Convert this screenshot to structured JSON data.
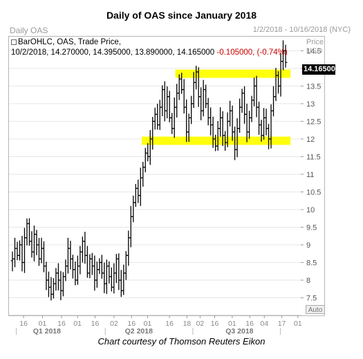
{
  "header": {
    "title": "Daily of OAS since January 2018",
    "panel_name": "Daily OAS",
    "date_range": "1/2/2018 - 10/16/2018 (NYC)"
  },
  "legend": {
    "line1": "BarOHLC, OAS, Trade Price,",
    "line2_values": "10/2/2018, 14.270000, 14.395000, 13.890000, 14.165000",
    "line2_change": "-0.105000, (-0.74%)"
  },
  "axis": {
    "y_title_line1": "Price",
    "y_title_line2": "USD",
    "last_price": "14.165000",
    "auto_button": "Auto"
  },
  "caption": "Chart courtesy of Thomson Reuters Eikon",
  "colors": {
    "bars": "#000000",
    "highlight": "#ffff00",
    "grid": "#e6e6e6",
    "change": "#d20000"
  },
  "chart_data": {
    "type": "bar",
    "subtype": "ohlc",
    "title": "Daily of OAS since January 2018",
    "ylabel": "Price USD",
    "ylim": [
      7,
      14.9
    ],
    "y_ticks": [
      "7.5",
      "8",
      "8.5",
      "9",
      "9.5",
      "10",
      "10.5",
      "11",
      "11.5",
      "12",
      "12.5",
      "13",
      "13.5",
      "14",
      "14.5"
    ],
    "x_tick_labels": [
      "16",
      "01",
      "16",
      "01",
      "16",
      "02",
      "16",
      "01",
      "16",
      "18",
      "02",
      "16",
      "01",
      "16",
      "04",
      "17",
      "01"
    ],
    "quarter_labels": [
      "Q1 2018",
      "Q2 2018",
      "Q3 2018"
    ],
    "highlight_levels": [
      13.85,
      11.95
    ],
    "last_bar": {
      "date": "10/2/2018",
      "open": 14.27,
      "high": 14.395,
      "low": 13.89,
      "close": 14.165
    },
    "series": [
      {
        "close": [
          8.6,
          8.9,
          8.7,
          9.0,
          8.5,
          9.2,
          9.6,
          9.1,
          8.8,
          9.3,
          9.0,
          8.6,
          8.9,
          8.4,
          8.0,
          7.8,
          7.6,
          7.9,
          8.2,
          8.0,
          7.7,
          8.1,
          8.4,
          8.9,
          8.6,
          8.3,
          8.0,
          8.4,
          8.8,
          9.1,
          8.7,
          8.2,
          8.6,
          8.4,
          8.0,
          8.3,
          8.5,
          8.2,
          7.9,
          8.4,
          8.1,
          7.8,
          8.2,
          8.6,
          8.0,
          7.7,
          8.2,
          8.7,
          9.2,
          9.8,
          10.2,
          10.6,
          10.4,
          10.9,
          11.2,
          11.6,
          11.5,
          12.0,
          12.5,
          12.7,
          12.4,
          12.9,
          13.4,
          12.8,
          13.2,
          12.6,
          12.3,
          12.9,
          13.3,
          13.7,
          13.4,
          12.9,
          12.2,
          12.6,
          13.0,
          13.6,
          13.9,
          13.2,
          12.8,
          13.4,
          13.0,
          12.6,
          12.4,
          12.0,
          11.8,
          12.3,
          12.6,
          12.1,
          11.9,
          12.5,
          12.8,
          12.2,
          11.7,
          12.3,
          12.9,
          13.3,
          12.7,
          12.2,
          12.6,
          13.1,
          13.5,
          12.9,
          12.4,
          12.1,
          12.6,
          12.3,
          12.0,
          12.8,
          13.2,
          13.8,
          13.5,
          14.2,
          14.5,
          14.17
        ]
      }
    ]
  }
}
